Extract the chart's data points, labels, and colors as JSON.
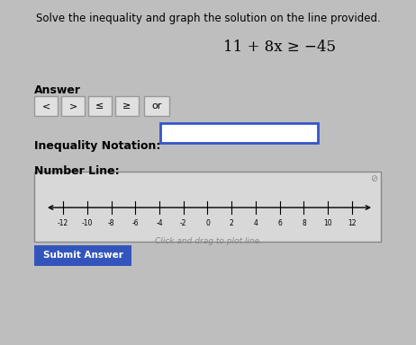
{
  "background_color": "#bebebe",
  "title": "Solve the inequality and graph the solution on the line provided.",
  "equation": "11 + 8x ≥ −45",
  "answer_label": "Answer",
  "buttons": [
    "<",
    ">",
    "≤",
    "≥",
    "or"
  ],
  "inequality_label": "Inequality Notation:",
  "number_line_label": "Number Line:",
  "click_drag_text": "Click and drag to plot line.",
  "submit_text": "Submit Answer",
  "number_line_ticks": [
    -12,
    -10,
    -8,
    -6,
    -4,
    -2,
    0,
    2,
    4,
    6,
    8,
    10,
    12
  ],
  "number_line_min": -13.5,
  "number_line_max": 13.8,
  "box_border_color": "#3355cc",
  "button_border_color": "#999999",
  "submit_bg": "#3355bb",
  "submit_text_color": "#ffffff",
  "number_line_box_bg": "#d8d8d8",
  "number_line_box_border": "#888888"
}
